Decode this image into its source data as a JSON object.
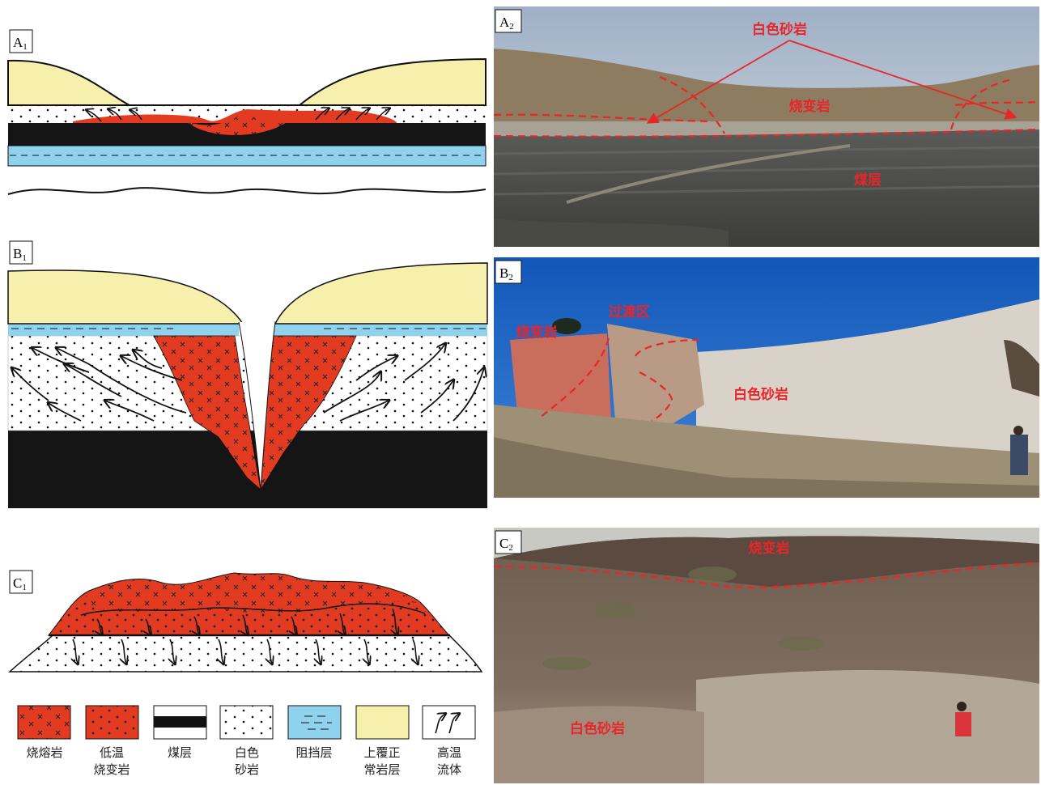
{
  "diagrams": [
    {
      "label": {
        "letter": "A",
        "sub": "1"
      }
    },
    {
      "label": {
        "letter": "B",
        "sub": "1"
      }
    },
    {
      "label": {
        "letter": "C",
        "sub": "1"
      }
    }
  ],
  "photos": [
    {
      "label": {
        "letter": "A",
        "sub": "2"
      },
      "annotations": [
        "白色砂岩",
        "烧变岩",
        "煤层"
      ]
    },
    {
      "label": {
        "letter": "B",
        "sub": "2"
      },
      "annotations": [
        "烧变岩",
        "过渡区",
        "白色砂岩"
      ]
    },
    {
      "label": {
        "letter": "C",
        "sub": "2"
      },
      "annotations": [
        "烧变岩",
        "白色砂岩"
      ]
    }
  ],
  "legend": [
    {
      "lines": [
        "烧熔岩"
      ]
    },
    {
      "lines": [
        "低温",
        "烧变岩"
      ]
    },
    {
      "lines": [
        "煤层"
      ]
    },
    {
      "lines": [
        "白色",
        "砂岩"
      ]
    },
    {
      "lines": [
        "阻挡层"
      ]
    },
    {
      "lines": [
        "上覆正",
        "常岩层"
      ]
    },
    {
      "lines": [
        "高温",
        "流体"
      ]
    }
  ]
}
